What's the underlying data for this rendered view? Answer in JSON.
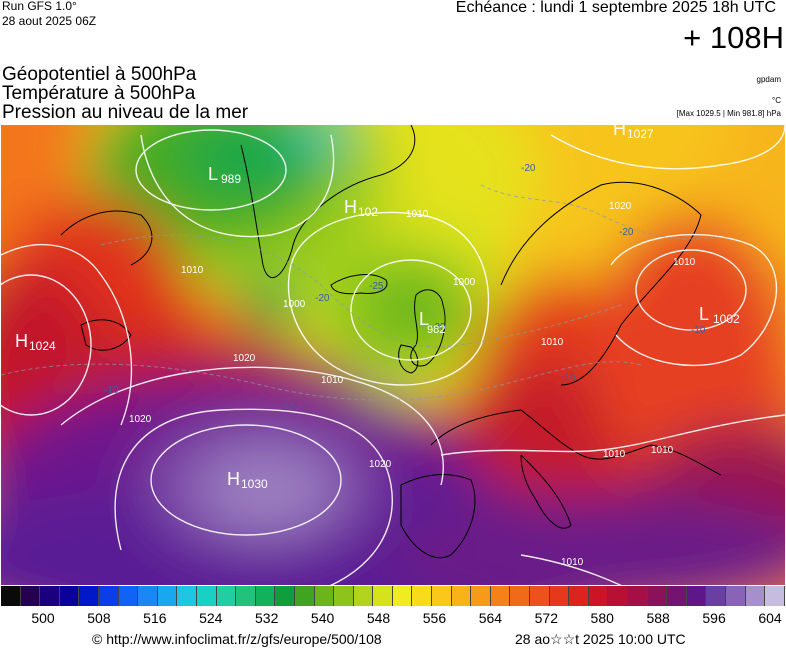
{
  "header": {
    "run_title": "Run GFS 1.0°",
    "run_date": "28 aout 2025 06Z",
    "valid_time": "Echéance : lundi 1 septembre 2025 18h UTC",
    "lead_time": "+ 108H",
    "fields": [
      "Géopotentiel à 500hPa",
      "Température à 500hPa",
      "Pression au niveau de la mer"
    ],
    "unit_a": "gpdam",
    "unit_b": "°C",
    "minmax": "[Max 1029.5 | Min 981.8] hPa"
  },
  "map": {
    "pressure_centers": [
      {
        "type": "H",
        "value": "1030"
      },
      {
        "type": "L",
        "value": "989"
      },
      {
        "type": "L",
        "value": "1002"
      },
      {
        "type": "H",
        "value": "1024"
      },
      {
        "type": "H",
        "value": "1027"
      },
      {
        "type": "H",
        "value": "102"
      },
      {
        "type": "L",
        "value": "982"
      }
    ],
    "isobar_labels": [
      "1020",
      "1020",
      "1020",
      "1010",
      "1010",
      "1010",
      "1010",
      "1010",
      "1000",
      "1000",
      "1020",
      "1010",
      "1010",
      "1010"
    ],
    "temperature_labels": [
      "-20",
      "-20",
      "-20",
      "-20",
      "-15",
      "-15",
      "-10",
      "-10",
      "-25"
    ]
  },
  "colorbar": {
    "colors": [
      "#0a0a0a",
      "#25004f",
      "#1a007e",
      "#0b009c",
      "#0018c8",
      "#0b3ee8",
      "#0f63f5",
      "#1b87f5",
      "#19a8ef",
      "#1fc6e2",
      "#19d1c3",
      "#21cda2",
      "#23c27c",
      "#12b25a",
      "#109e3c",
      "#3fa521",
      "#6bb51b",
      "#8dc41b",
      "#b2d41d",
      "#d5e21c",
      "#f1ec1f",
      "#f6dc1c",
      "#f9c81b",
      "#fab21a",
      "#f89a19",
      "#f58218",
      "#f16a18",
      "#ed521a",
      "#e6391c",
      "#dc231d",
      "#cb1426",
      "#b80f35",
      "#a40f45",
      "#8b125a",
      "#741471",
      "#5e1788",
      "#6b3ea1",
      "#8a63b6",
      "#a78fcb",
      "#c6bce0"
    ],
    "labels": [
      "500",
      "508",
      "516",
      "524",
      "532",
      "540",
      "548",
      "556",
      "564",
      "572",
      "580",
      "588",
      "596",
      "604"
    ]
  },
  "footer": {
    "url": "© http://www.infoclimat.fr/z/gfs/europe/500/108",
    "date": "28 ao☆☆t 2025 10:00 UTC"
  }
}
